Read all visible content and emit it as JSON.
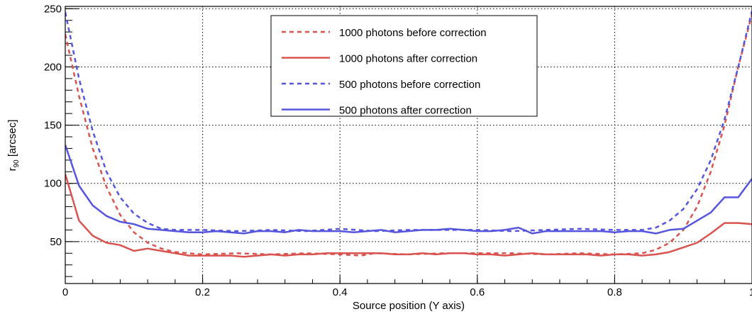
{
  "chart_data": {
    "type": "line",
    "title": "",
    "xlabel": "Source position (Y axis)",
    "ylabel": "r",
    "ylabel_sub": "90",
    "ylabel_unit": " [arcsec]",
    "xlim": [
      0,
      1
    ],
    "ylim": [
      14,
      252
    ],
    "grid": true,
    "legend_position": "top-center",
    "x_ticks": [
      {
        "value": 0,
        "label": "0"
      },
      {
        "value": 0.2,
        "label": "0.2"
      },
      {
        "value": 0.4,
        "label": "0.4"
      },
      {
        "value": 0.6,
        "label": "0.6"
      },
      {
        "value": 0.8,
        "label": "0.8"
      },
      {
        "value": 1,
        "label": "1"
      }
    ],
    "y_ticks": [
      {
        "value": 50,
        "label": "50"
      },
      {
        "value": 100,
        "label": "100"
      },
      {
        "value": 150,
        "label": "150"
      },
      {
        "value": 200,
        "label": "200"
      },
      {
        "value": 250,
        "label": "250"
      }
    ],
    "series": [
      {
        "name": "1000 photons before correction",
        "color": "#d9534f",
        "dash": true,
        "points": [
          [
            0,
            228
          ],
          [
            0.02,
            175
          ],
          [
            0.04,
            130
          ],
          [
            0.06,
            97
          ],
          [
            0.08,
            73
          ],
          [
            0.1,
            58
          ],
          [
            0.12,
            49
          ],
          [
            0.14,
            44
          ],
          [
            0.16,
            41
          ],
          [
            0.18,
            40
          ],
          [
            0.2,
            39
          ],
          [
            0.25,
            40
          ],
          [
            0.3,
            39
          ],
          [
            0.35,
            40
          ],
          [
            0.4,
            39
          ],
          [
            0.43,
            38
          ],
          [
            0.45,
            40
          ],
          [
            0.5,
            39
          ],
          [
            0.55,
            40
          ],
          [
            0.6,
            40
          ],
          [
            0.65,
            40
          ],
          [
            0.7,
            39
          ],
          [
            0.75,
            40
          ],
          [
            0.8,
            39
          ],
          [
            0.84,
            40
          ],
          [
            0.86,
            43
          ],
          [
            0.88,
            49
          ],
          [
            0.9,
            60
          ],
          [
            0.92,
            80
          ],
          [
            0.94,
            110
          ],
          [
            0.96,
            150
          ],
          [
            0.98,
            200
          ],
          [
            1.0,
            245
          ]
        ]
      },
      {
        "name": "1000 photons after correction",
        "color": "#d9534f",
        "dash": false,
        "points": [
          [
            0,
            108
          ],
          [
            0.02,
            68
          ],
          [
            0.04,
            55
          ],
          [
            0.06,
            49
          ],
          [
            0.08,
            47
          ],
          [
            0.1,
            42
          ],
          [
            0.12,
            44
          ],
          [
            0.14,
            42
          ],
          [
            0.16,
            40
          ],
          [
            0.18,
            38
          ],
          [
            0.2,
            38
          ],
          [
            0.22,
            38
          ],
          [
            0.24,
            38
          ],
          [
            0.26,
            37
          ],
          [
            0.28,
            38
          ],
          [
            0.3,
            39
          ],
          [
            0.32,
            38
          ],
          [
            0.34,
            39
          ],
          [
            0.36,
            39
          ],
          [
            0.38,
            40
          ],
          [
            0.4,
            40
          ],
          [
            0.42,
            40
          ],
          [
            0.44,
            40
          ],
          [
            0.46,
            40
          ],
          [
            0.48,
            39
          ],
          [
            0.5,
            39
          ],
          [
            0.52,
            40
          ],
          [
            0.54,
            39
          ],
          [
            0.56,
            40
          ],
          [
            0.58,
            40
          ],
          [
            0.6,
            39
          ],
          [
            0.62,
            39
          ],
          [
            0.64,
            38
          ],
          [
            0.66,
            39
          ],
          [
            0.68,
            40
          ],
          [
            0.7,
            39
          ],
          [
            0.72,
            39
          ],
          [
            0.74,
            39
          ],
          [
            0.76,
            39
          ],
          [
            0.78,
            38
          ],
          [
            0.8,
            39
          ],
          [
            0.82,
            39
          ],
          [
            0.84,
            38
          ],
          [
            0.86,
            39
          ],
          [
            0.88,
            41
          ],
          [
            0.9,
            45
          ],
          [
            0.92,
            49
          ],
          [
            0.94,
            57
          ],
          [
            0.96,
            66
          ],
          [
            0.98,
            66
          ],
          [
            1.0,
            65
          ]
        ]
      },
      {
        "name": "500 photons before correction",
        "color": "#5555dd",
        "dash": true,
        "points": [
          [
            0,
            247
          ],
          [
            0.02,
            190
          ],
          [
            0.04,
            145
          ],
          [
            0.06,
            110
          ],
          [
            0.08,
            88
          ],
          [
            0.1,
            74
          ],
          [
            0.12,
            66
          ],
          [
            0.14,
            61
          ],
          [
            0.16,
            60
          ],
          [
            0.2,
            60
          ],
          [
            0.25,
            59
          ],
          [
            0.3,
            60
          ],
          [
            0.35,
            59
          ],
          [
            0.4,
            61
          ],
          [
            0.45,
            59
          ],
          [
            0.5,
            60
          ],
          [
            0.55,
            60
          ],
          [
            0.6,
            60
          ],
          [
            0.65,
            59
          ],
          [
            0.7,
            60
          ],
          [
            0.75,
            61
          ],
          [
            0.8,
            60
          ],
          [
            0.84,
            60
          ],
          [
            0.86,
            62
          ],
          [
            0.88,
            68
          ],
          [
            0.9,
            78
          ],
          [
            0.92,
            95
          ],
          [
            0.94,
            120
          ],
          [
            0.96,
            155
          ],
          [
            0.98,
            200
          ],
          [
            1.0,
            248
          ]
        ]
      },
      {
        "name": "500 photons after correction",
        "color": "#5555dd",
        "dash": false,
        "points": [
          [
            0,
            133
          ],
          [
            0.02,
            98
          ],
          [
            0.04,
            81
          ],
          [
            0.06,
            72
          ],
          [
            0.08,
            67
          ],
          [
            0.1,
            65
          ],
          [
            0.12,
            61
          ],
          [
            0.14,
            60
          ],
          [
            0.16,
            59
          ],
          [
            0.18,
            58
          ],
          [
            0.2,
            58
          ],
          [
            0.22,
            59
          ],
          [
            0.24,
            58
          ],
          [
            0.26,
            57
          ],
          [
            0.28,
            59
          ],
          [
            0.3,
            59
          ],
          [
            0.32,
            58
          ],
          [
            0.34,
            60
          ],
          [
            0.36,
            59
          ],
          [
            0.38,
            59
          ],
          [
            0.4,
            59
          ],
          [
            0.42,
            58
          ],
          [
            0.44,
            59
          ],
          [
            0.46,
            60
          ],
          [
            0.48,
            58
          ],
          [
            0.5,
            59
          ],
          [
            0.52,
            60
          ],
          [
            0.54,
            60
          ],
          [
            0.56,
            61
          ],
          [
            0.58,
            60
          ],
          [
            0.6,
            59
          ],
          [
            0.62,
            59
          ],
          [
            0.64,
            60
          ],
          [
            0.66,
            62
          ],
          [
            0.68,
            57
          ],
          [
            0.7,
            59
          ],
          [
            0.72,
            59
          ],
          [
            0.74,
            59
          ],
          [
            0.76,
            59
          ],
          [
            0.78,
            59
          ],
          [
            0.8,
            58
          ],
          [
            0.82,
            59
          ],
          [
            0.84,
            59
          ],
          [
            0.86,
            57
          ],
          [
            0.88,
            60
          ],
          [
            0.9,
            61
          ],
          [
            0.92,
            68
          ],
          [
            0.94,
            75
          ],
          [
            0.96,
            88
          ],
          [
            0.98,
            88
          ],
          [
            1.0,
            104
          ]
        ]
      }
    ]
  }
}
